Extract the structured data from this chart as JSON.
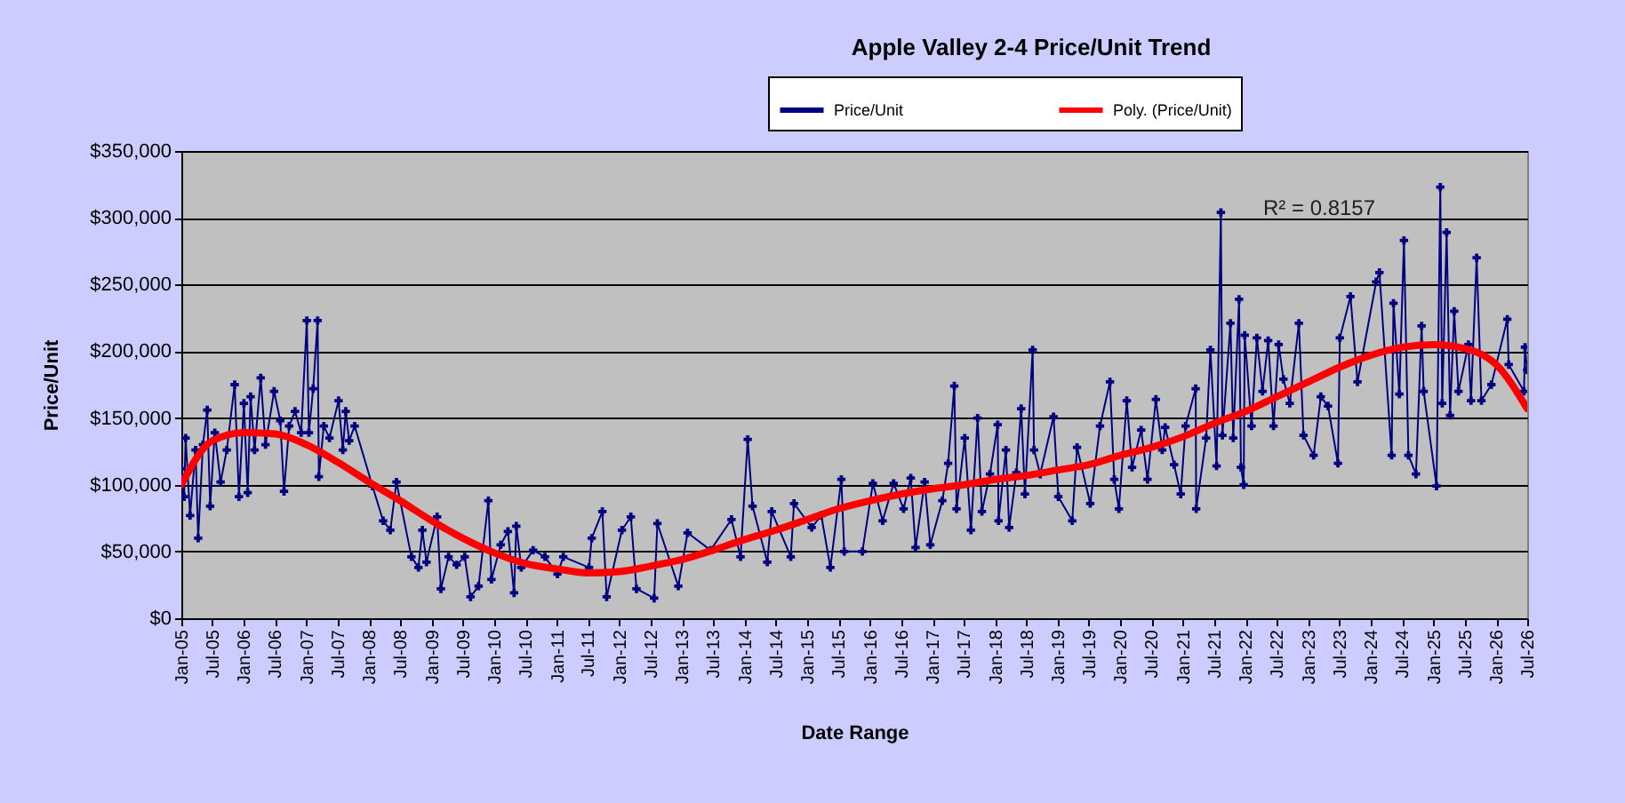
{
  "chart_data": {
    "type": "line",
    "title": "Apple Valley 2-4 Price/Unit Trend",
    "xlabel": "Date Range",
    "ylabel": "Price/Unit",
    "xlim": [
      "2005-01-01",
      "2026-07-01"
    ],
    "xticks": [
      {
        "value": "2005-01",
        "label": "Jan-05"
      },
      {
        "value": "2005-07",
        "label": "Jul-05"
      },
      {
        "value": "2006-01",
        "label": "Jan-06"
      },
      {
        "value": "2006-07",
        "label": "Jul-06"
      },
      {
        "value": "2007-01",
        "label": "Jan-07"
      },
      {
        "value": "2007-07",
        "label": "Jul-07"
      },
      {
        "value": "2008-01",
        "label": "Jan-08"
      },
      {
        "value": "2008-07",
        "label": "Jul-08"
      },
      {
        "value": "2009-01",
        "label": "Jan-09"
      },
      {
        "value": "2009-07",
        "label": "Jul-09"
      },
      {
        "value": "2010-01",
        "label": "Jan-10"
      },
      {
        "value": "2010-07",
        "label": "Jul-10"
      },
      {
        "value": "2011-01",
        "label": "Jan-11"
      },
      {
        "value": "2011-07",
        "label": "Jul-11"
      },
      {
        "value": "2012-01",
        "label": "Jan-12"
      },
      {
        "value": "2012-07",
        "label": "Jul-12"
      },
      {
        "value": "2013-01",
        "label": "Jan-13"
      },
      {
        "value": "2013-07",
        "label": "Jul-13"
      },
      {
        "value": "2014-01",
        "label": "Jan-14"
      },
      {
        "value": "2014-07",
        "label": "Jul-14"
      },
      {
        "value": "2015-01",
        "label": "Jan-15"
      },
      {
        "value": "2015-07",
        "label": "Jul-15"
      },
      {
        "value": "2016-01",
        "label": "Jan-16"
      },
      {
        "value": "2016-07",
        "label": "Jul-16"
      },
      {
        "value": "2017-01",
        "label": "Jan-17"
      },
      {
        "value": "2017-07",
        "label": "Jul-17"
      },
      {
        "value": "2018-01",
        "label": "Jan-18"
      },
      {
        "value": "2018-07",
        "label": "Jul-18"
      },
      {
        "value": "2019-01",
        "label": "Jan-19"
      },
      {
        "value": "2019-07",
        "label": "Jul-19"
      },
      {
        "value": "2020-01",
        "label": "Jan-20"
      },
      {
        "value": "2020-07",
        "label": "Jul-20"
      },
      {
        "value": "2021-01",
        "label": "Jan-21"
      },
      {
        "value": "2021-07",
        "label": "Jul-21"
      },
      {
        "value": "2022-01",
        "label": "Jan-22"
      },
      {
        "value": "2022-07",
        "label": "Jul-22"
      },
      {
        "value": "2023-01",
        "label": "Jan-23"
      },
      {
        "value": "2023-07",
        "label": "Jul-23"
      },
      {
        "value": "2024-01",
        "label": "Jan-24"
      },
      {
        "value": "2024-07",
        "label": "Jul-24"
      },
      {
        "value": "2025-01",
        "label": "Jan-25"
      },
      {
        "value": "2025-07",
        "label": "Jul-25"
      },
      {
        "value": "2026-01",
        "label": "Jan-26"
      },
      {
        "value": "2026-07",
        "label": "Jul-26"
      }
    ],
    "ylim": [
      0,
      350000
    ],
    "yticks": [
      {
        "value": 0,
        "label": "$0"
      },
      {
        "value": 50000,
        "label": "$50,000"
      },
      {
        "value": 100000,
        "label": "$100,000"
      },
      {
        "value": 150000,
        "label": "$150,000"
      },
      {
        "value": 200000,
        "label": "$200,000"
      },
      {
        "value": 250000,
        "label": "$250,000"
      },
      {
        "value": 300000,
        "label": "$300,000"
      },
      {
        "value": 350000,
        "label": "$350,000"
      }
    ],
    "grid": "y",
    "legend": "top",
    "marker": "cross",
    "line_style": "solid",
    "annotations": [
      "R² = 0.8157"
    ],
    "series": [
      {
        "name": "Price/Unit",
        "color": "#000080",
        "x": [
          "2005-01-01",
          "2005-01-17",
          "2005-01-26",
          "2005-02-21",
          "2005-03-25",
          "2005-04-09",
          "2005-05-07",
          "2005-06-01",
          "2005-06-18",
          "2005-07-15",
          "2005-08-18",
          "2005-09-23",
          "2005-11-08",
          "2005-12-03",
          "2006-01-01",
          "2006-01-23",
          "2006-02-09",
          "2006-03-04",
          "2006-04-09",
          "2006-05-07",
          "2006-06-26",
          "2006-08-01",
          "2006-08-23",
          "2006-09-22",
          "2006-10-26",
          "2006-12-01",
          "2007-01-03",
          "2007-01-15",
          "2007-02-09",
          "2007-03-07",
          "2007-03-14",
          "2007-04-12",
          "2007-05-15",
          "2007-07-07",
          "2007-08-01",
          "2007-08-18",
          "2007-09-07",
          "2007-10-09",
          "2008-01-21",
          "2008-03-23",
          "2008-05-04",
          "2008-06-09",
          "2008-09-04",
          "2008-10-15",
          "2008-11-07",
          "2008-12-01",
          "2009-02-01",
          "2009-02-23",
          "2009-04-09",
          "2009-05-26",
          "2009-07-12",
          "2009-08-15",
          "2009-10-01",
          "2009-11-27",
          "2009-12-15",
          "2010-02-07",
          "2010-03-21",
          "2010-04-26",
          "2010-05-09",
          "2010-06-07",
          "2010-08-15",
          "2010-10-23",
          "2011-01-04",
          "2011-02-07",
          "2011-07-07",
          "2011-07-23",
          "2011-09-23",
          "2011-10-18",
          "2012-01-15",
          "2012-03-07",
          "2012-04-09",
          "2012-07-21",
          "2012-08-09",
          "2012-12-09",
          "2013-02-01",
          "2013-06-15",
          "2013-10-15",
          "2013-12-07",
          "2014-01-18",
          "2014-02-15",
          "2014-05-12",
          "2014-06-07",
          "2014-09-26",
          "2014-10-15",
          "2015-01-26",
          "2015-03-23",
          "2015-05-15",
          "2015-07-18",
          "2015-08-04",
          "2015-11-18",
          "2016-01-18",
          "2016-03-15",
          "2016-05-18",
          "2016-07-15",
          "2016-08-26",
          "2016-09-23",
          "2016-11-15",
          "2016-12-18",
          "2017-02-26",
          "2017-04-01",
          "2017-05-07",
          "2017-05-20",
          "2017-07-07",
          "2017-08-12",
          "2017-09-20",
          "2017-10-15",
          "2017-12-01",
          "2018-01-15",
          "2018-01-20",
          "2018-03-04",
          "2018-03-23",
          "2018-05-04",
          "2018-06-01",
          "2018-06-23",
          "2018-08-07",
          "2018-08-15",
          "2018-09-20",
          "2018-12-07",
          "2019-01-04",
          "2019-03-26",
          "2019-04-23",
          "2019-07-09",
          "2019-09-04",
          "2019-11-01",
          "2019-11-26",
          "2019-12-23",
          "2020-02-07",
          "2020-03-09",
          "2020-05-01",
          "2020-06-07",
          "2020-07-26",
          "2020-09-01",
          "2020-09-18",
          "2020-11-09",
          "2020-12-18",
          "2021-01-15",
          "2021-03-15",
          "2021-03-18",
          "2021-05-15",
          "2021-06-09",
          "2021-07-15",
          "2021-08-09",
          "2021-08-18",
          "2021-10-04",
          "2021-10-20",
          "2021-11-23",
          "2021-12-04",
          "2021-12-20",
          "2021-12-26",
          "2022-02-04",
          "2022-03-07",
          "2022-04-09",
          "2022-05-12",
          "2022-06-12",
          "2022-07-12",
          "2022-08-09",
          "2022-09-15",
          "2022-11-07",
          "2022-12-04",
          "2023-02-01",
          "2023-03-15",
          "2023-04-26",
          "2023-06-23",
          "2023-07-04",
          "2023-09-04",
          "2023-10-15",
          "2024-02-01",
          "2024-02-20",
          "2024-05-01",
          "2024-05-12",
          "2024-06-15",
          "2024-07-12",
          "2024-08-07",
          "2024-09-20",
          "2024-10-23",
          "2024-11-04",
          "2025-01-18",
          "2025-02-09",
          "2025-02-20",
          "2025-03-18",
          "2025-04-07",
          "2025-05-01",
          "2025-05-26",
          "2025-07-23",
          "2025-08-07",
          "2025-09-09",
          "2025-10-07",
          "2025-12-04",
          "2026-03-07",
          "2026-03-15",
          "2026-06-12",
          "2026-06-18",
          "2026-07-01"
        ],
        "values": [
          112000,
          91000,
          135000,
          77000,
          126000,
          60000,
          130000,
          156000,
          84000,
          139000,
          102000,
          126000,
          175000,
          91000,
          161000,
          94000,
          166000,
          126000,
          180000,
          130000,
          170000,
          148000,
          95000,
          144000,
          155000,
          139000,
          223000,
          139000,
          172000,
          223000,
          106000,
          144000,
          135000,
          163000,
          126000,
          155000,
          133000,
          144000,
          99000,
          73000,
          66000,
          102000,
          46000,
          38000,
          66000,
          42000,
          76000,
          22000,
          46000,
          40000,
          46000,
          16000,
          24000,
          88000,
          29000,
          55000,
          65000,
          19000,
          69000,
          38000,
          51000,
          46000,
          33000,
          46000,
          38000,
          60000,
          80000,
          16000,
          66000,
          76000,
          22000,
          15000,
          71000,
          24000,
          64000,
          51000,
          74000,
          46000,
          134000,
          84000,
          42000,
          80000,
          46000,
          86000,
          68000,
          77000,
          38000,
          104000,
          50000,
          50000,
          101000,
          73000,
          101000,
          82000,
          105000,
          53000,
          102000,
          55000,
          88000,
          116000,
          174000,
          82000,
          135000,
          66000,
          150000,
          80000,
          108000,
          145000,
          73000,
          126000,
          68000,
          109000,
          157000,
          93000,
          201000,
          126000,
          108000,
          151000,
          91000,
          73000,
          128000,
          86000,
          144000,
          177000,
          104000,
          82000,
          163000,
          113000,
          141000,
          104000,
          164000,
          126000,
          143000,
          115000,
          93000,
          144000,
          172000,
          82000,
          135000,
          201000,
          114000,
          304000,
          137000,
          221000,
          135000,
          239000,
          113000,
          100000,
          212000,
          144000,
          210000,
          170000,
          208000,
          144000,
          205000,
          179000,
          161000,
          221000,
          137000,
          122000,
          166000,
          159000,
          116000,
          210000,
          241000,
          177000,
          252000,
          259000,
          122000,
          236000,
          168000,
          283000,
          122000,
          108000,
          219000,
          170000,
          99000,
          323000,
          161000,
          289000,
          152000,
          230000,
          170000,
          205000,
          163000,
          270000,
          163000,
          175000,
          224000,
          190000,
          170000,
          203000,
          186000
        ]
      },
      {
        "name": "Poly. (Price/Unit)",
        "type": "line",
        "color": "#ff0000",
        "marker": "none",
        "x": [
          "2005-01",
          "2005-07",
          "2006-01",
          "2006-07",
          "2007-01",
          "2007-07",
          "2008-01",
          "2008-07",
          "2009-01",
          "2009-07",
          "2010-01",
          "2010-07",
          "2011-01",
          "2011-07",
          "2012-01",
          "2012-07",
          "2013-01",
          "2013-07",
          "2014-01",
          "2014-07",
          "2015-01",
          "2015-07",
          "2016-01",
          "2016-07",
          "2017-01",
          "2017-07",
          "2018-01",
          "2018-07",
          "2019-01",
          "2019-07",
          "2020-01",
          "2020-07",
          "2021-01",
          "2021-07",
          "2022-01",
          "2022-07",
          "2023-01",
          "2023-07",
          "2024-01",
          "2024-07",
          "2025-01",
          "2025-07",
          "2026-01",
          "2026-07"
        ],
        "values": [
          100000,
          133000,
          139000,
          138000,
          130000,
          117000,
          102000,
          88000,
          73000,
          60000,
          49000,
          41000,
          37000,
          34000,
          35000,
          39000,
          44000,
          51000,
          59000,
          66000,
          74000,
          82000,
          88000,
          93000,
          97000,
          100000,
          104000,
          107000,
          111000,
          115000,
          122000,
          128000,
          136000,
          146000,
          155000,
          166000,
          177000,
          188000,
          197000,
          203000,
          205000,
          202000,
          190000,
          157000
        ]
      }
    ]
  }
}
